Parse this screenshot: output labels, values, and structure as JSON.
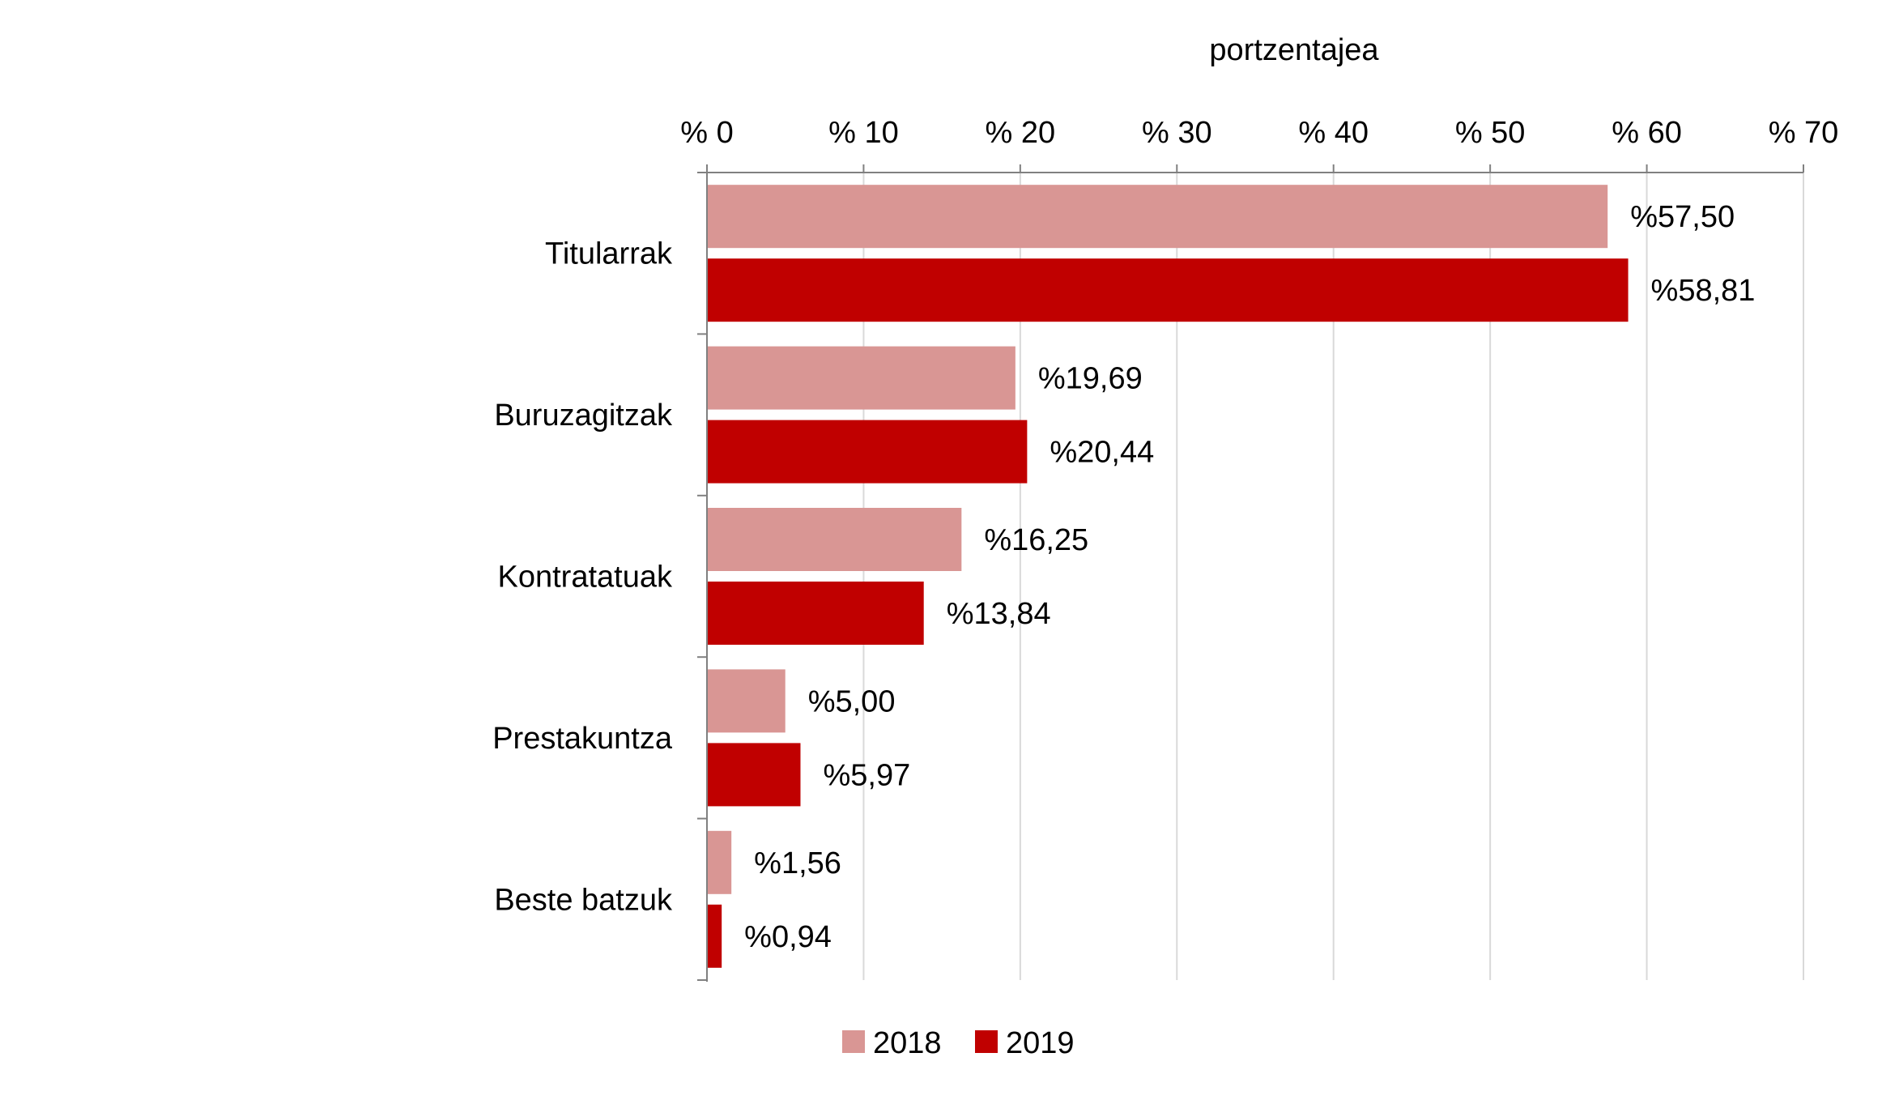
{
  "chart_data": {
    "type": "bar",
    "orientation": "horizontal",
    "xlabel": "portzentajea",
    "xlim": [
      0,
      70
    ],
    "x_ticks": [
      0,
      10,
      20,
      30,
      40,
      50,
      60,
      70
    ],
    "x_tick_labels": [
      "% 0",
      "% 10",
      "% 20",
      "% 30",
      "% 40",
      "% 50",
      "% 60",
      "% 70"
    ],
    "x_axis_position": "top",
    "grid": true,
    "legend_position": "bottom",
    "categories": [
      "Titularrak",
      "Buruzagitzak",
      "Kontratatuak",
      "Prestakuntza",
      "Beste batzuk"
    ],
    "series": [
      {
        "name": "2018",
        "color": "#d99694",
        "values": [
          57.5,
          19.69,
          16.25,
          5.0,
          1.56
        ],
        "labels": [
          "%57,50",
          "%19,69",
          "%16,25",
          "%5,00",
          "%1,56"
        ]
      },
      {
        "name": "2019",
        "color": "#c00000",
        "values": [
          58.81,
          20.44,
          13.84,
          5.97,
          0.94
        ],
        "labels": [
          "%58,81",
          "%20,44",
          "%13,84",
          "%5,97",
          "%0,94"
        ]
      }
    ]
  }
}
